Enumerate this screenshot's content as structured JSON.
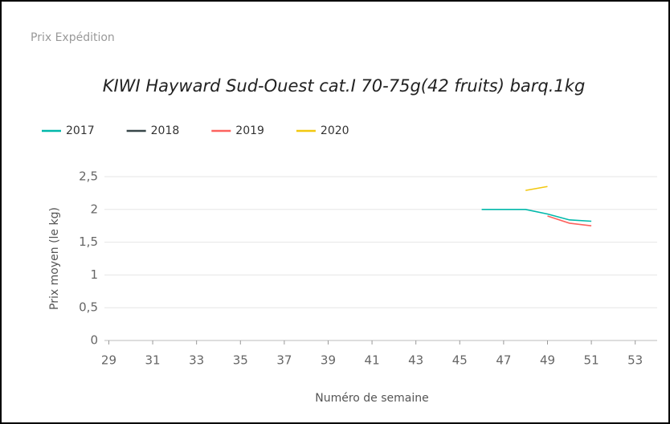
{
  "header": "Prix Expédition",
  "chart_data": {
    "type": "line",
    "title": "KIWI Hayward Sud-Ouest cat.I  70-75g(42 fruits) barq.1kg",
    "x_label": "Numéro de semaine",
    "y_label": "Prix moyen  (le kg)",
    "x": [
      46,
      47,
      48,
      49,
      50,
      51
    ],
    "series": [
      {
        "name": "2017",
        "color": "#01b8aa",
        "values": [
          2.0,
          2.0,
          2.0,
          1.93,
          1.84,
          1.82
        ]
      },
      {
        "name": "2018",
        "color": "#374649",
        "values": [
          null,
          null,
          null,
          null,
          null,
          null
        ]
      },
      {
        "name": "2019",
        "color": "#fd625e",
        "values": [
          null,
          null,
          null,
          1.9,
          1.79,
          1.75
        ]
      },
      {
        "name": "2020",
        "color": "#f2c80f",
        "values": [
          null,
          null,
          2.29,
          2.35,
          null,
          null
        ]
      }
    ],
    "xlim": [
      28.8,
      54
    ],
    "xticks": [
      29,
      31,
      33,
      35,
      37,
      39,
      41,
      43,
      45,
      47,
      49,
      51,
      53
    ],
    "ylim": [
      0,
      2.5
    ],
    "yticks": [
      0,
      {
        "value": 0.5,
        "label": "0,5"
      },
      1,
      {
        "value": 1.5,
        "label": "1,5"
      },
      2,
      {
        "value": 2.5,
        "label": "2,5"
      }
    ],
    "grid": true,
    "legend": "top-left"
  }
}
